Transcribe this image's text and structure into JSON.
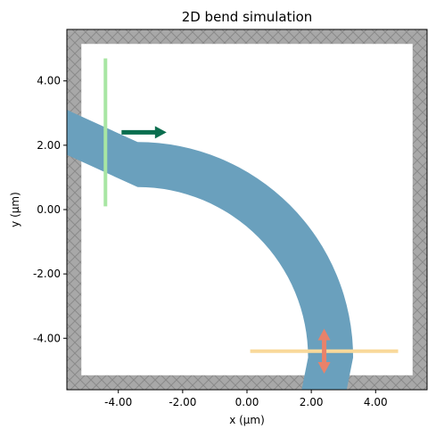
{
  "chart_data": {
    "type": "simulation-layout",
    "title": "2D bend simulation",
    "xlabel": "x (µm)",
    "ylabel": "y (µm)",
    "xlim": [
      -5.6,
      5.6
    ],
    "ylim": [
      -5.6,
      5.6
    ],
    "x_ticks": [
      -4,
      -2,
      0,
      2,
      4
    ],
    "x_tick_labels": [
      "-4.00",
      "-2.00",
      "0.00",
      "2.00",
      "4.00"
    ],
    "y_ticks": [
      -4,
      -2,
      0,
      2,
      4
    ],
    "y_tick_labels": [
      "-4.00",
      "-2.00",
      "0.00",
      "2.00",
      "4.00"
    ],
    "pml": {
      "inner_min": -5.15,
      "inner_max": 5.15,
      "color": "#a8a8a8",
      "hatch_color": "#8a8a8a"
    },
    "waveguide": {
      "color": "#6aa0bd",
      "width": 1.4,
      "straight_in": {
        "x_start": -5.6,
        "x_end": -3.4,
        "y_center": 2.4
      },
      "bend_center": [
        -3.4,
        -4.6
      ],
      "bend_radius": 6.0,
      "straight_out": {
        "x_center": 2.4,
        "y_start": -3.6,
        "y_end": -5.6
      }
    },
    "source": {
      "x": -4.4,
      "y_min": 0.1,
      "y_max": 4.7,
      "color": "#a8e6a3"
    },
    "source_arrow": {
      "x_start": -3.9,
      "x_end": -2.5,
      "y": 2.4,
      "color": "#0b6e4f"
    },
    "monitor": {
      "y": -4.4,
      "x_min": 0.1,
      "x_max": 4.7,
      "color": "#f9d99a"
    },
    "monitor_arrow": {
      "x": 2.4,
      "y_min": -5.1,
      "y_max": -3.7,
      "color": "#e8826a"
    }
  }
}
